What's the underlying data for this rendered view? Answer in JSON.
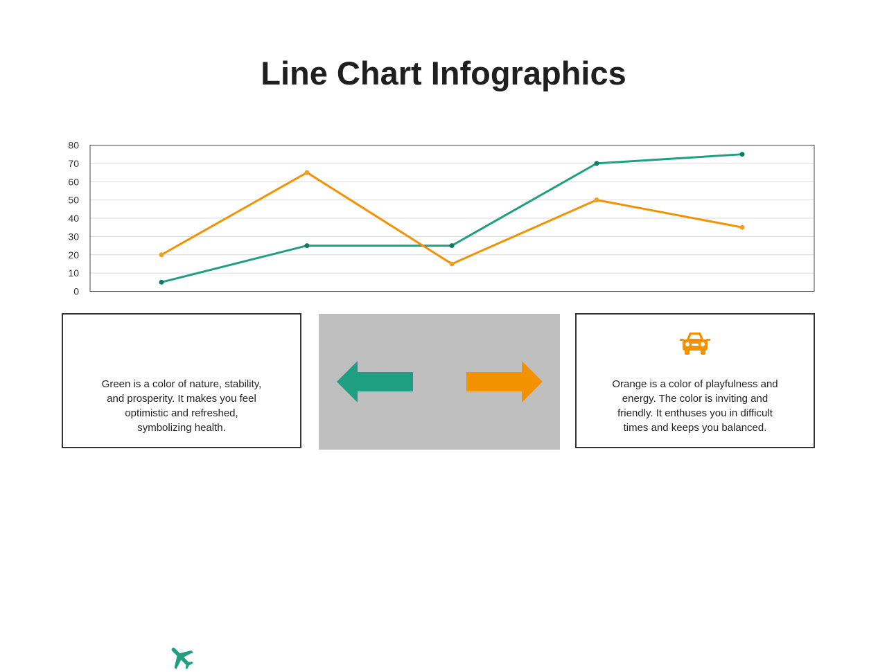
{
  "title": "Line Chart Infographics",
  "colors": {
    "green": "#1f9e82",
    "orange": "#f39200",
    "green_dot": "#137a5f",
    "orange_dot": "#f0a020"
  },
  "chart_data": {
    "type": "line",
    "x": [
      1,
      2,
      3,
      4,
      5
    ],
    "ylim": [
      0,
      80
    ],
    "yticks": [
      0,
      10,
      20,
      30,
      40,
      50,
      60,
      70,
      80
    ],
    "grid": true,
    "series": [
      {
        "color": "#1f9e82",
        "values": [
          5,
          25,
          25,
          70,
          75
        ]
      },
      {
        "color": "#f39200",
        "values": [
          20,
          65,
          15,
          50,
          35
        ]
      }
    ]
  },
  "left_card": {
    "icon": "airplane-icon",
    "text": "Green is a color of nature, stability,\nand prosperity.  It makes you feel\noptimistic and refreshed,\nsymbolizing health."
  },
  "middle": {
    "left_arrow": "arrow-left-icon",
    "right_arrow": "arrow-right-icon"
  },
  "right_card": {
    "icon": "car-icon",
    "text": "Orange is a color of playfulness and\nenergy. The color is inviting and\nfriendly. It enthuses you in difficult\ntimes and keeps  you balanced."
  }
}
